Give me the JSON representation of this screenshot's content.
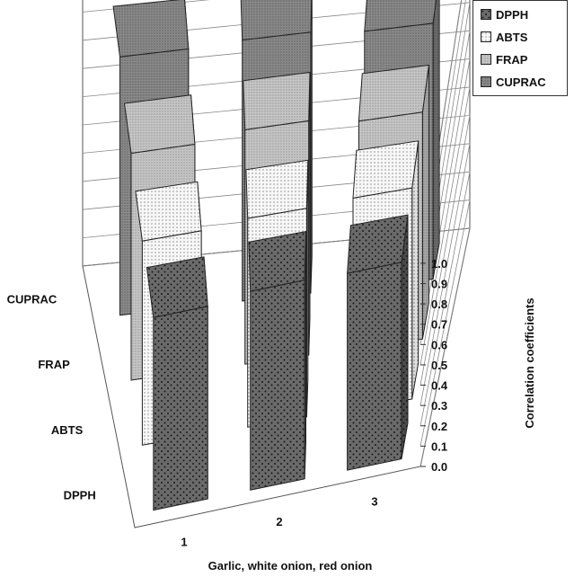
{
  "chart_data": {
    "type": "bar",
    "title": "",
    "xlabel": "Garlic, white onion, red onion",
    "ylabel": "",
    "zlabel": "Correlation coefficients",
    "categories": [
      "1",
      "2",
      "3"
    ],
    "depth_labels": [
      "DPPH",
      "ABTS",
      "FRAP",
      "CUPRAC"
    ],
    "zlim": [
      0.0,
      1.0
    ],
    "z_ticks": [
      "0.0",
      "0.1",
      "0.2",
      "0.3",
      "0.4",
      "0.5",
      "0.6",
      "0.7",
      "0.8",
      "0.9",
      "1.0"
    ],
    "grid": true,
    "legend_position": "top-right",
    "series": [
      {
        "name": "DPPH",
        "values": [
          0.93,
          0.96,
          0.95
        ],
        "color": "#6f6f6f",
        "pattern": "dots"
      },
      {
        "name": "ABTS",
        "values": [
          0.9,
          0.92,
          0.93
        ],
        "color": "#f4f4f4",
        "pattern": "fine-dots"
      },
      {
        "name": "FRAP",
        "values": [
          0.92,
          0.95,
          0.92
        ],
        "color": "#bdbdbd",
        "pattern": "fine-dots"
      },
      {
        "name": "CUPRAC",
        "values": [
          0.97,
          0.98,
          0.96
        ],
        "color": "#8c8c8c",
        "pattern": "stipple"
      }
    ]
  }
}
